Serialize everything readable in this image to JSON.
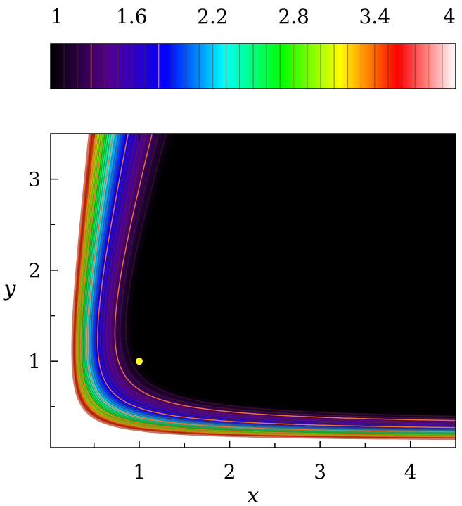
{
  "chart_data": {
    "type": "heatmap",
    "title": "",
    "xlabel": "x",
    "ylabel": "y",
    "xlim": [
      0.02,
      4.5
    ],
    "ylim": [
      0.05,
      3.5
    ],
    "x_ticks": [
      "1",
      "2",
      "3",
      "4"
    ],
    "y_ticks": [
      "1",
      "2",
      "3"
    ],
    "color_scale": {
      "range": [
        1,
        4
      ],
      "tick_labels": [
        "1",
        "1.6",
        "2.2",
        "2.8",
        "3.4",
        "4"
      ],
      "colors": [
        "#000000",
        "#55008c",
        "#0000ff",
        "#00ffff",
        "#00ff00",
        "#ffff00",
        "#ff0000",
        "#ffffff"
      ]
    },
    "contour_levels": [
      1.1,
      1.2,
      1.3,
      1.4,
      1.5,
      1.6,
      1.7,
      1.8,
      1.9,
      2.0,
      2.1,
      2.2,
      2.3,
      2.4,
      2.5,
      2.6,
      2.7,
      2.8,
      2.9,
      3.0,
      3.1,
      3.2,
      3.3,
      3.4,
      3.5,
      3.6,
      3.7,
      3.8,
      3.9
    ],
    "minimum_point": {
      "x": 1,
      "y": 1,
      "value": 1.0,
      "color": "#ffff22"
    },
    "grid": false
  }
}
